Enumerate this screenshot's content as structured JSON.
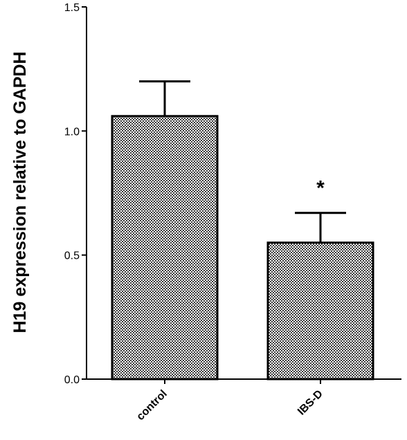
{
  "chart_data": {
    "type": "bar",
    "categories": [
      "control",
      "IBS-D"
    ],
    "values": [
      1.06,
      0.55
    ],
    "errors": [
      0.14,
      0.12
    ],
    "annotations": [
      "",
      "*"
    ],
    "ylabel": "H19 expression relative to GAPDH",
    "xlabel": "",
    "ylim": [
      0,
      1.5
    ],
    "yticks": [
      0.0,
      0.5,
      1.0,
      1.5
    ],
    "ytick_labels": [
      "0.0",
      "0.5",
      "1.0",
      "1.5"
    ],
    "bar_fill": "checkered gray",
    "grid": false
  }
}
